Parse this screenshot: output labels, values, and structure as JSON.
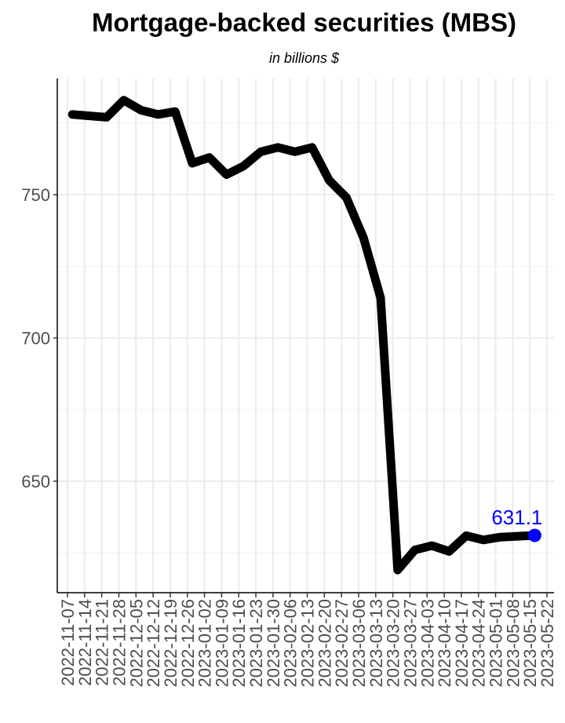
{
  "chart_data": {
    "type": "line",
    "title": "Mortgage-backed securities (MBS)",
    "subtitle": "in billions $",
    "xlabel": "",
    "ylabel": "",
    "x_ticks": [
      "2022-11-07",
      "2022-11-14",
      "2022-11-21",
      "2022-11-28",
      "2022-12-05",
      "2022-12-12",
      "2022-12-19",
      "2022-12-26",
      "2023-01-02",
      "2023-01-09",
      "2023-01-16",
      "2023-01-23",
      "2023-01-30",
      "2023-02-06",
      "2023-02-13",
      "2023-02-20",
      "2023-02-27",
      "2023-03-06",
      "2023-03-13",
      "2023-03-20",
      "2023-03-27",
      "2023-04-03",
      "2023-04-10",
      "2023-04-17",
      "2023-04-24",
      "2023-05-01",
      "2023-05-08",
      "2023-05-15",
      "2023-05-22"
    ],
    "x": [
      "2022-11-09",
      "2022-11-16",
      "2022-11-23",
      "2022-11-30",
      "2022-12-07",
      "2022-12-14",
      "2022-12-21",
      "2022-12-28",
      "2023-01-04",
      "2023-01-11",
      "2023-01-18",
      "2023-01-25",
      "2023-02-01",
      "2023-02-08",
      "2023-02-15",
      "2023-02-22",
      "2023-03-01",
      "2023-03-08",
      "2023-03-15",
      "2023-03-22",
      "2023-03-29",
      "2023-04-05",
      "2023-04-12",
      "2023-04-19",
      "2023-04-26",
      "2023-05-03",
      "2023-05-10",
      "2023-05-17"
    ],
    "series": [
      {
        "values": [
          778,
          777.5,
          777,
          783,
          779.5,
          778,
          779,
          761,
          763,
          757,
          760,
          765,
          766.5,
          765,
          766.5,
          755,
          749,
          735,
          714,
          619,
          626,
          627.5,
          625.5,
          631,
          629.5,
          630.5,
          630.8,
          631.1
        ],
        "color": "#000000"
      }
    ],
    "last_point": {
      "x": "2023-05-17",
      "value": 631.1,
      "label": "631.1",
      "color": "#0000ff"
    },
    "yticks": [
      650,
      700,
      750
    ],
    "ytick_labels": [
      "650",
      "700",
      "750"
    ],
    "ylim": [
      615,
      788
    ],
    "xlim": [
      "2022-11-07",
      "2023-05-22"
    ],
    "grid": true,
    "legend": "none"
  }
}
